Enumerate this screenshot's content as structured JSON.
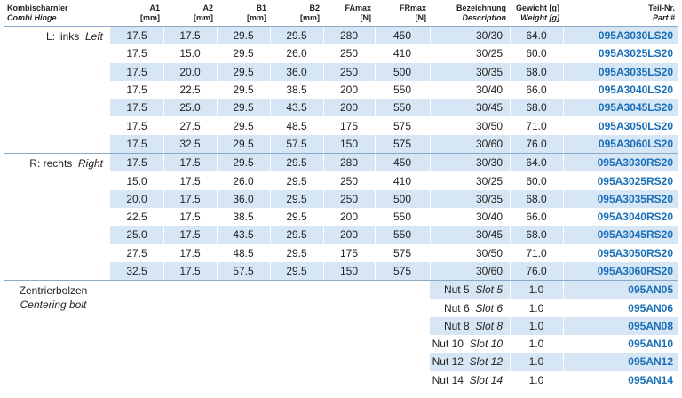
{
  "headers": {
    "col0": {
      "de": "Kombischarnier",
      "en": "Combi Hinge"
    },
    "a1": {
      "name": "A1",
      "unit": "[mm]"
    },
    "a2": {
      "name": "A2",
      "unit": "[mm]"
    },
    "b1": {
      "name": "B1",
      "unit": "[mm]"
    },
    "b2": {
      "name": "B2",
      "unit": "[mm]"
    },
    "famax": {
      "name": "FAmax",
      "unit": "[N]"
    },
    "frmax": {
      "name": "FRmax",
      "unit": "[N]"
    },
    "desc": {
      "de": "Bezeichnung",
      "en": "Description"
    },
    "weight": {
      "de": "Gewicht [g]",
      "en": "Weight [g]"
    },
    "part": {
      "de": "Teil-Nr.",
      "en": "Part #"
    }
  },
  "groups": {
    "left": {
      "de": "L: links",
      "en": "Left"
    },
    "right": {
      "de": "R: rechts",
      "en": "Right"
    },
    "bolt": {
      "de": "Zentrierbolzen",
      "en": "Centering bolt"
    }
  },
  "left_rows": [
    {
      "a1": "17.5",
      "a2": "17.5",
      "b1": "29.5",
      "b2": "29.5",
      "fa": "280",
      "fr": "450",
      "desc": "30/30",
      "w": "64.0",
      "part": "095A3030LS20"
    },
    {
      "a1": "17.5",
      "a2": "15.0",
      "b1": "29.5",
      "b2": "26.0",
      "fa": "250",
      "fr": "410",
      "desc": "30/25",
      "w": "60.0",
      "part": "095A3025LS20"
    },
    {
      "a1": "17.5",
      "a2": "20.0",
      "b1": "29.5",
      "b2": "36.0",
      "fa": "250",
      "fr": "500",
      "desc": "30/35",
      "w": "68.0",
      "part": "095A3035LS20"
    },
    {
      "a1": "17.5",
      "a2": "22.5",
      "b1": "29.5",
      "b2": "38.5",
      "fa": "200",
      "fr": "550",
      "desc": "30/40",
      "w": "66.0",
      "part": "095A3040LS20"
    },
    {
      "a1": "17.5",
      "a2": "25.0",
      "b1": "29.5",
      "b2": "43.5",
      "fa": "200",
      "fr": "550",
      "desc": "30/45",
      "w": "68.0",
      "part": "095A3045LS20"
    },
    {
      "a1": "17.5",
      "a2": "27.5",
      "b1": "29.5",
      "b2": "48.5",
      "fa": "175",
      "fr": "575",
      "desc": "30/50",
      "w": "71.0",
      "part": "095A3050LS20"
    },
    {
      "a1": "17.5",
      "a2": "32.5",
      "b1": "29.5",
      "b2": "57.5",
      "fa": "150",
      "fr": "575",
      "desc": "30/60",
      "w": "76.0",
      "part": "095A3060LS20"
    }
  ],
  "right_rows": [
    {
      "a1": "17.5",
      "a2": "17.5",
      "b1": "29.5",
      "b2": "29.5",
      "fa": "280",
      "fr": "450",
      "desc": "30/30",
      "w": "64.0",
      "part": "095A3030RS20"
    },
    {
      "a1": "15.0",
      "a2": "17.5",
      "b1": "26.0",
      "b2": "29.5",
      "fa": "250",
      "fr": "410",
      "desc": "30/25",
      "w": "60.0",
      "part": "095A3025RS20"
    },
    {
      "a1": "20.0",
      "a2": "17.5",
      "b1": "36.0",
      "b2": "29.5",
      "fa": "250",
      "fr": "500",
      "desc": "30/35",
      "w": "68.0",
      "part": "095A3035RS20"
    },
    {
      "a1": "22.5",
      "a2": "17.5",
      "b1": "38.5",
      "b2": "29.5",
      "fa": "200",
      "fr": "550",
      "desc": "30/40",
      "w": "66.0",
      "part": "095A3040RS20"
    },
    {
      "a1": "25.0",
      "a2": "17.5",
      "b1": "43.5",
      "b2": "29.5",
      "fa": "200",
      "fr": "550",
      "desc": "30/45",
      "w": "68.0",
      "part": "095A3045RS20"
    },
    {
      "a1": "27.5",
      "a2": "17.5",
      "b1": "48.5",
      "b2": "29.5",
      "fa": "175",
      "fr": "575",
      "desc": "30/50",
      "w": "71.0",
      "part": "095A3050RS20"
    },
    {
      "a1": "32.5",
      "a2": "17.5",
      "b1": "57.5",
      "b2": "29.5",
      "fa": "150",
      "fr": "575",
      "desc": "30/60",
      "w": "76.0",
      "part": "095A3060RS20"
    }
  ],
  "bolt_rows": [
    {
      "de": "Nut 5",
      "en": "Slot 5",
      "w": "1.0",
      "part": "095AN05"
    },
    {
      "de": "Nut 6",
      "en": "Slot 6",
      "w": "1.0",
      "part": "095AN06"
    },
    {
      "de": "Nut 8",
      "en": "Slot 8",
      "w": "1.0",
      "part": "095AN08"
    },
    {
      "de": "Nut 10",
      "en": "Slot 10",
      "w": "1.0",
      "part": "095AN10"
    },
    {
      "de": "Nut 12",
      "en": "Slot 12",
      "w": "1.0",
      "part": "095AN12"
    },
    {
      "de": "Nut 14",
      "en": "Slot 14",
      "w": "1.0",
      "part": "095AN14"
    }
  ],
  "colors": {
    "shade": "#d6e6f5",
    "part_text": "#1a6fb8",
    "rule": "#8aa9c9"
  }
}
